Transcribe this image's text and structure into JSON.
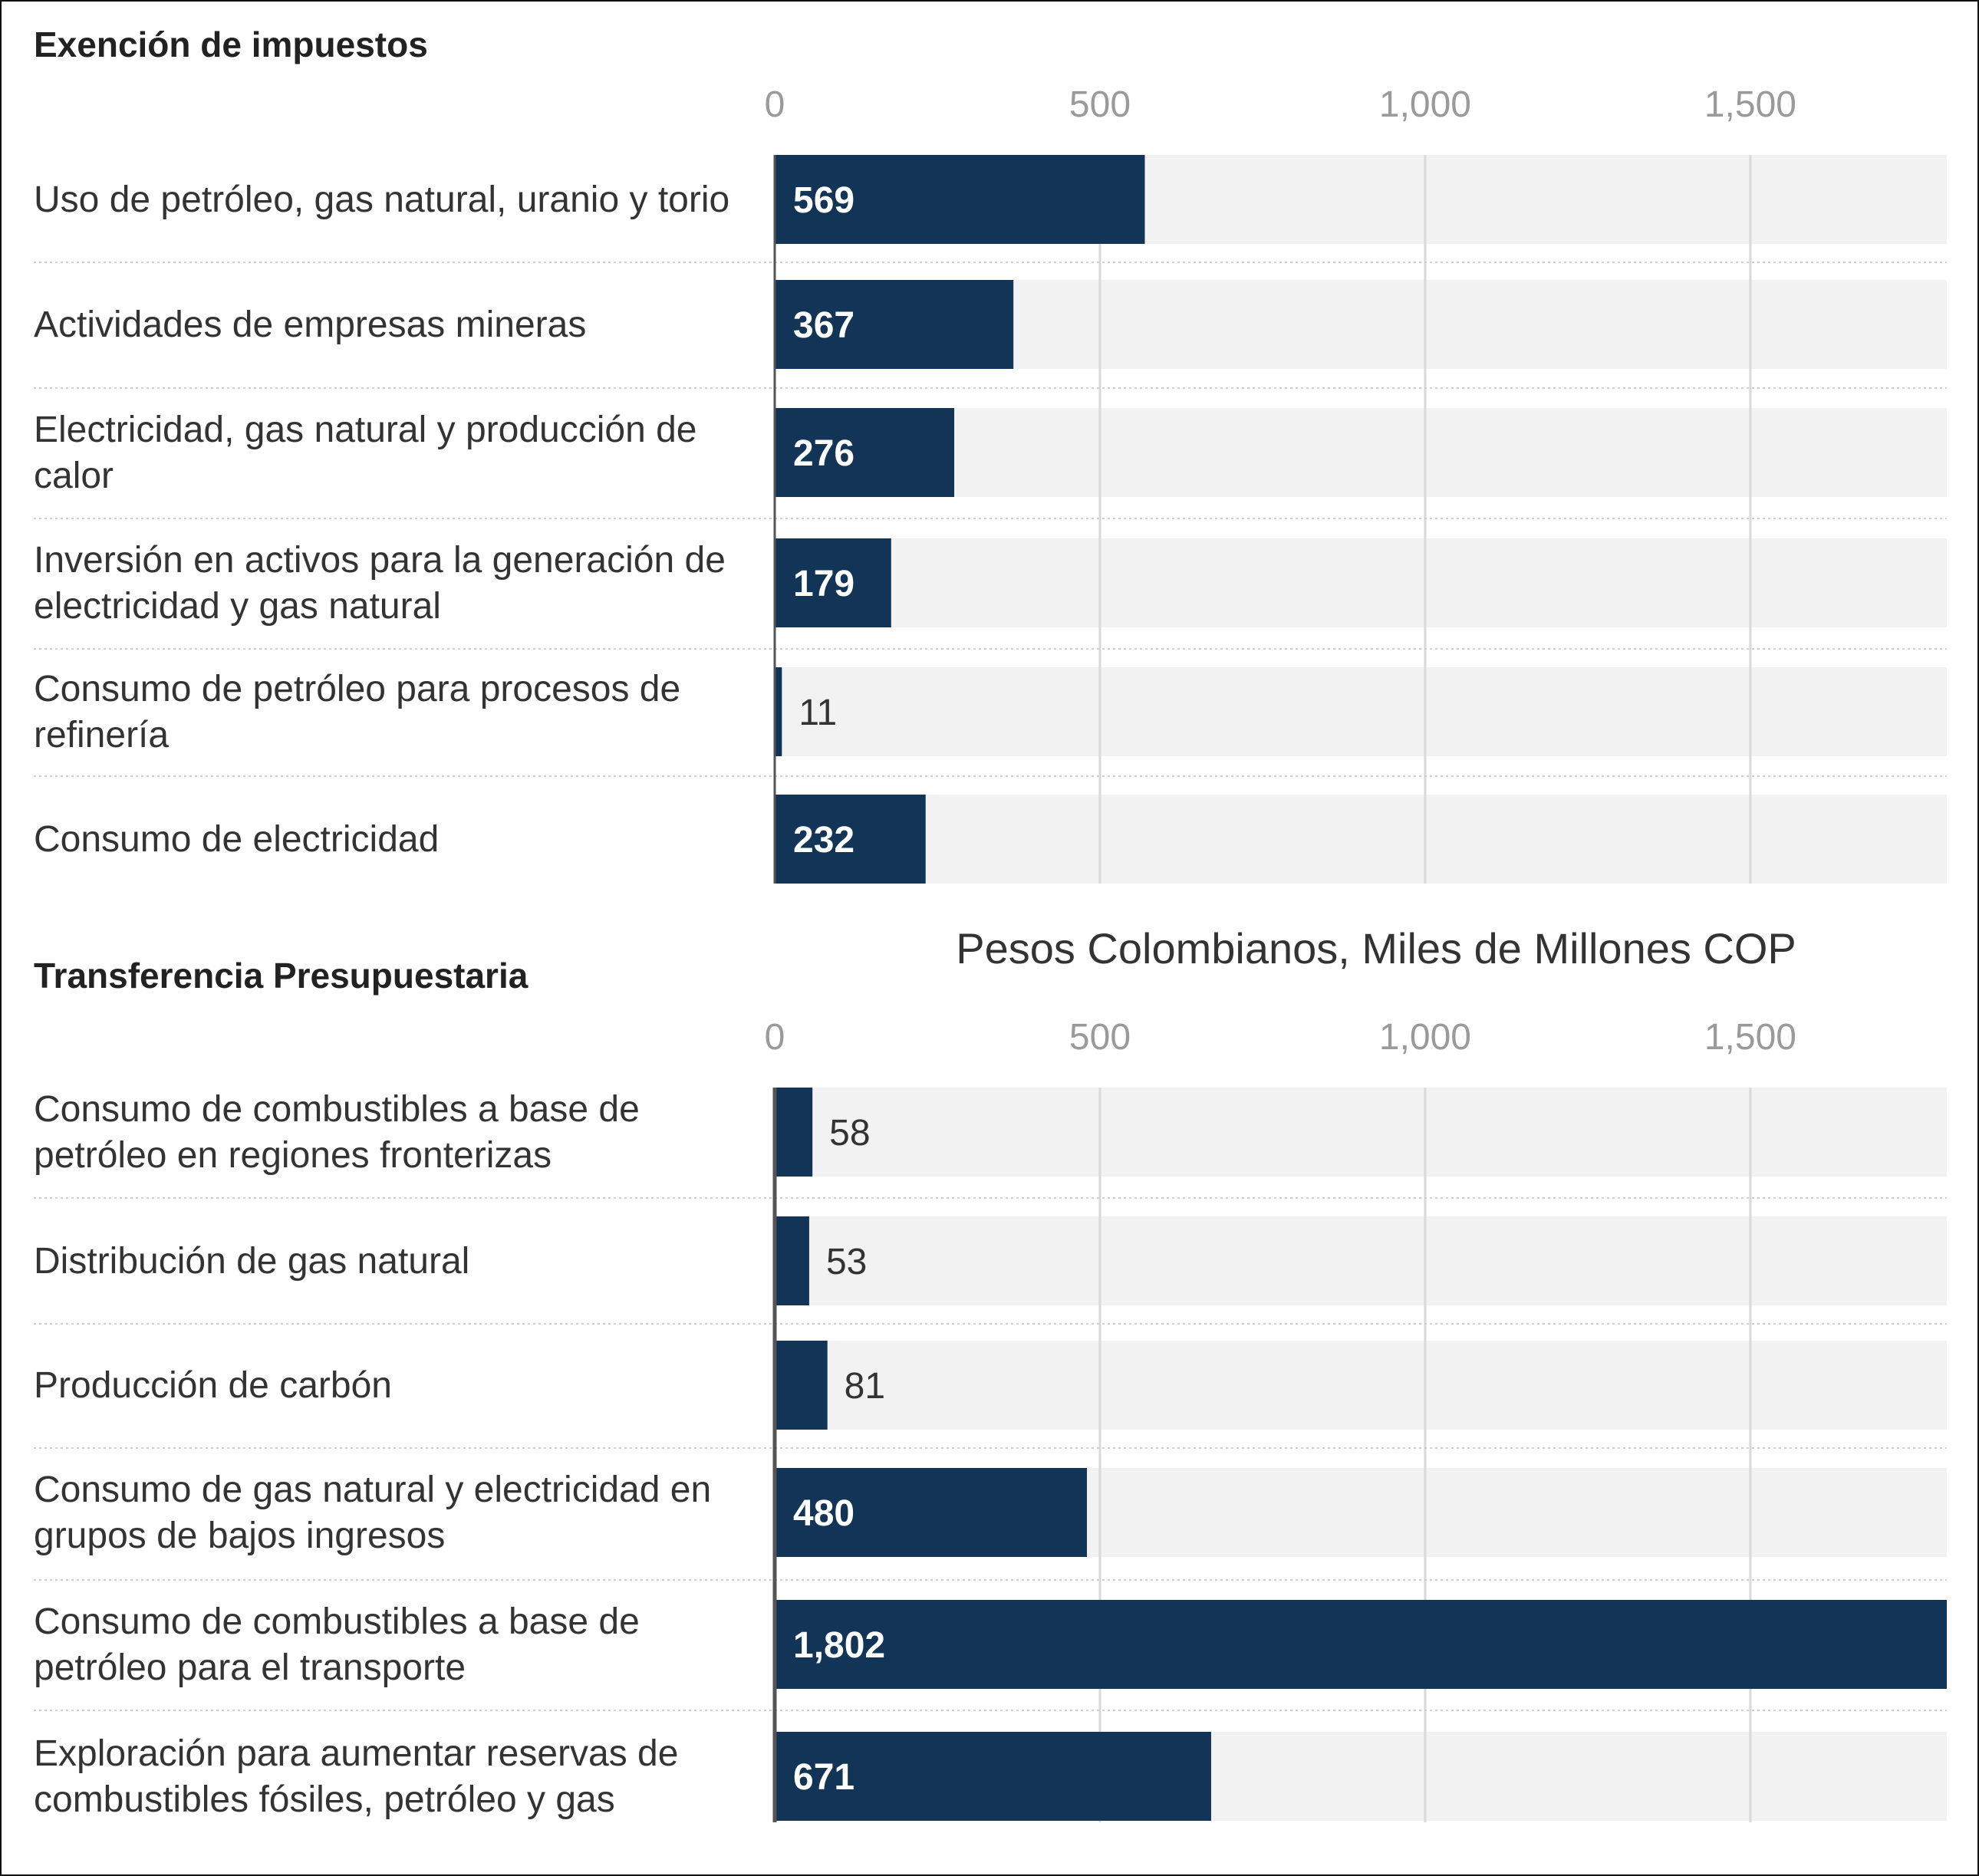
{
  "colors": {
    "bar": "#123456",
    "track": "#f2f2f2",
    "grid": "#d9d9d9",
    "separator": "#cfcfcf"
  },
  "chart_data": [
    {
      "type": "bar",
      "orientation": "horizontal",
      "title": "Exención de impuestos",
      "categories": [
        [
          "Uso de petróleo, gas natural, uranio y torio"
        ],
        [
          "Actividades de empresas mineras"
        ],
        [
          "Electricidad, gas natural y producción de",
          "calor"
        ],
        [
          "Inversión en activos para la generación de",
          "electricidad y gas natural"
        ],
        [
          "Consumo de petróleo para procesos de",
          "refinería"
        ],
        [
          "Consumo de electricidad"
        ]
      ],
      "values": [
        569,
        367,
        276,
        179,
        11,
        232
      ],
      "value_labels": [
        "569",
        "367",
        "276",
        "179",
        "11",
        "232"
      ],
      "xlim": [
        0,
        1802
      ],
      "ticks": [
        0,
        500,
        1000,
        1500
      ],
      "tick_labels": [
        "0",
        "500",
        "1,000",
        "1,500"
      ],
      "xlabel": "",
      "grid": true
    },
    {
      "type": "bar",
      "orientation": "horizontal",
      "title": "Transferencia Presupuestaria",
      "categories": [
        [
          "Consumo de combustibles a base de",
          "petróleo en regiones fronterizas"
        ],
        [
          "Distribución de gas natural"
        ],
        [
          "Producción de carbón"
        ],
        [
          "Consumo de gas natural y electricidad en",
          "grupos de bajos ingresos"
        ],
        [
          "Consumo de combustibles a base de",
          "petróleo para el transporte"
        ],
        [
          "Exploración para aumentar reservas de",
          "combustibles fósiles, petróleo y gas"
        ]
      ],
      "values": [
        58,
        53,
        81,
        480,
        1802,
        671
      ],
      "value_labels": [
        "58",
        "53",
        "81",
        "480",
        "1,802",
        "671"
      ],
      "xlim": [
        0,
        1802
      ],
      "ticks": [
        0,
        500,
        1000,
        1500
      ],
      "tick_labels": [
        "0",
        "500",
        "1,000",
        "1,500"
      ],
      "xlabel": "Pesos Colombianos, Miles de Millones COP",
      "grid": true
    }
  ]
}
